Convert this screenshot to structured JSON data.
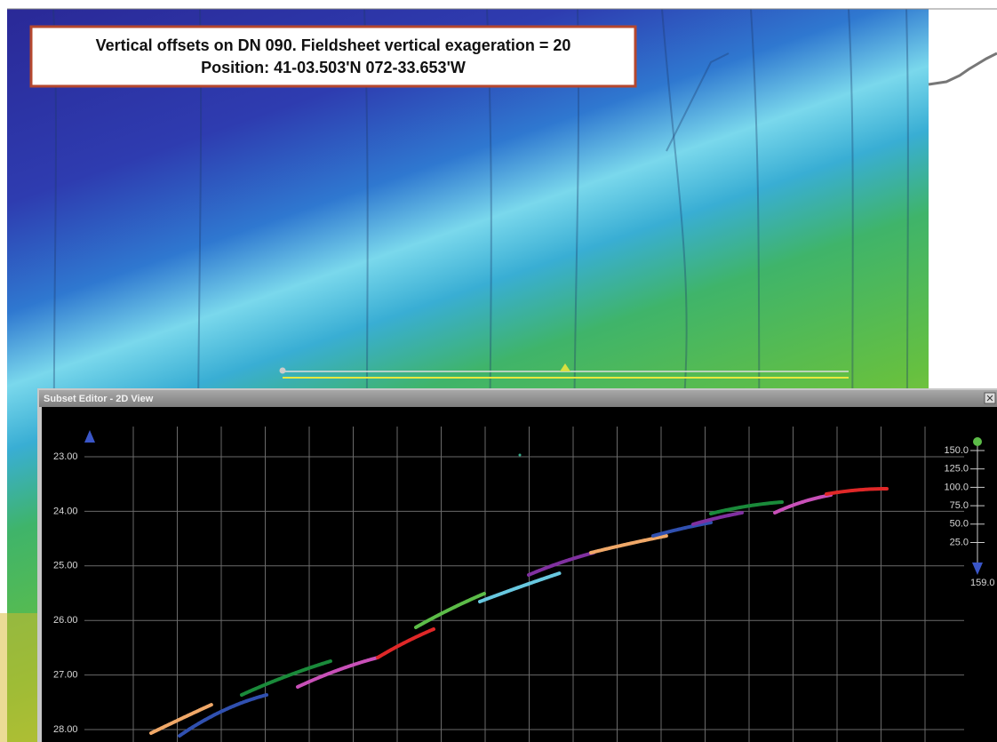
{
  "annotation": {
    "line1": "Vertical offsets on DN 090. Fieldsheet vertical exageration = 20",
    "line2": "Position: 41-03.503'N 072-33.653'W"
  },
  "window": {
    "title": "Subset Editor - 2D View"
  },
  "depth_labels": [
    "23.00",
    "24.00",
    "25.00",
    "26.00",
    "27.00",
    "28.00"
  ],
  "scale_labels": [
    "150.0",
    "125.0",
    "100.0",
    "75.0",
    "50.0",
    "25.0"
  ],
  "scale_max": "159.0"
}
